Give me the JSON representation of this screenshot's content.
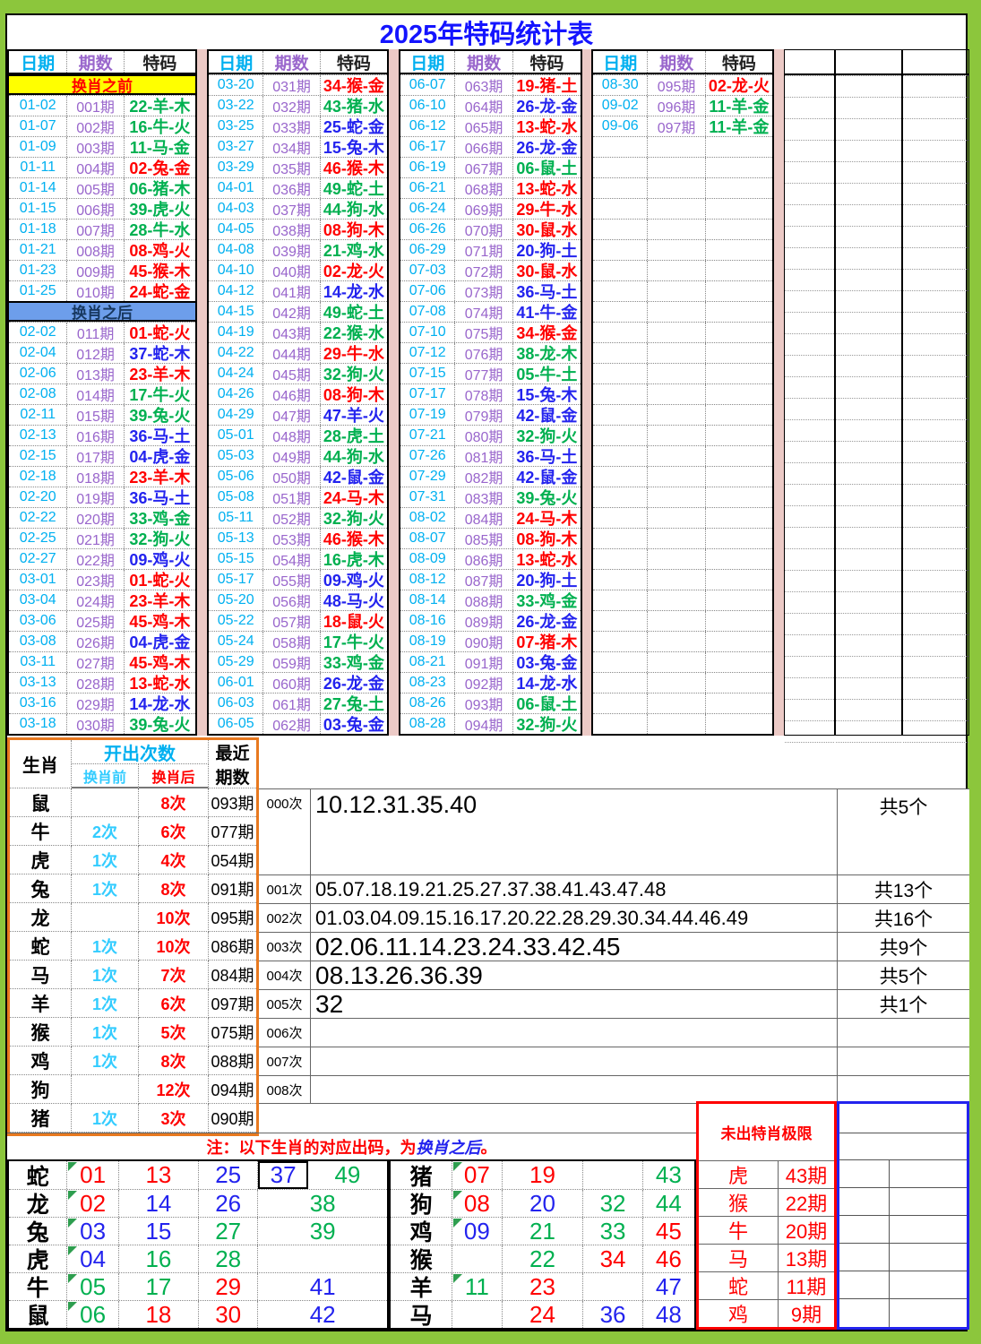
{
  "title": "2025年特码统计表",
  "colors": {
    "frame": "#8CC63C",
    "pink": "#ECCAC6",
    "cyan": "#00B0F0",
    "purple": "#9966CC",
    "red": "#FF0000",
    "green": "#00B050",
    "blue": "#2323EE",
    "yellow_bg": "#FFFF00",
    "blue_bg": "#6D9EEB",
    "orange": "#E8791F",
    "title": "#1414FF"
  },
  "main_table": {
    "headers": {
      "date": "日期",
      "period": "期数",
      "code": "特码"
    },
    "sections": {
      "before": "换肖之前",
      "after": "换肖之后"
    },
    "groups": [
      {
        "rows": [
          [
            "01-02",
            "001期",
            "22-羊-木",
            "g"
          ],
          [
            "01-07",
            "002期",
            "16-牛-火",
            "g"
          ],
          [
            "01-09",
            "003期",
            "11-马-金",
            "g"
          ],
          [
            "01-11",
            "004期",
            "02-兔-金",
            "r"
          ],
          [
            "01-14",
            "005期",
            "06-猪-木",
            "g"
          ],
          [
            "01-15",
            "006期",
            "39-虎-火",
            "g"
          ],
          [
            "01-18",
            "007期",
            "28-牛-水",
            "g"
          ],
          [
            "01-21",
            "008期",
            "08-鸡-火",
            "r"
          ],
          [
            "01-23",
            "009期",
            "45-猴-木",
            "r"
          ],
          [
            "01-25",
            "010期",
            "24-蛇-金",
            "r"
          ],
          [
            "02-02",
            "011期",
            "01-蛇-火",
            "r"
          ],
          [
            "02-04",
            "012期",
            "37-蛇-木",
            "b"
          ],
          [
            "02-06",
            "013期",
            "23-羊-木",
            "r"
          ],
          [
            "02-08",
            "014期",
            "17-牛-火",
            "g"
          ],
          [
            "02-11",
            "015期",
            "39-兔-火",
            "g"
          ],
          [
            "02-13",
            "016期",
            "36-马-土",
            "b"
          ],
          [
            "02-15",
            "017期",
            "04-虎-金",
            "b"
          ],
          [
            "02-18",
            "018期",
            "23-羊-木",
            "r"
          ],
          [
            "02-20",
            "019期",
            "36-马-土",
            "b"
          ],
          [
            "02-22",
            "020期",
            "33-鸡-金",
            "g"
          ],
          [
            "02-25",
            "021期",
            "32-狗-火",
            "g"
          ],
          [
            "02-27",
            "022期",
            "09-鸡-火",
            "b"
          ],
          [
            "03-01",
            "023期",
            "01-蛇-火",
            "r"
          ],
          [
            "03-04",
            "024期",
            "23-羊-木",
            "r"
          ],
          [
            "03-06",
            "025期",
            "45-鸡-木",
            "r"
          ],
          [
            "03-08",
            "026期",
            "04-虎-金",
            "b"
          ],
          [
            "03-11",
            "027期",
            "45-鸡-木",
            "r"
          ],
          [
            "03-13",
            "028期",
            "13-蛇-水",
            "r"
          ],
          [
            "03-16",
            "029期",
            "14-龙-水",
            "b"
          ],
          [
            "03-18",
            "030期",
            "39-兔-火",
            "g"
          ]
        ]
      },
      {
        "rows": [
          [
            "03-20",
            "031期",
            "34-猴-金",
            "r"
          ],
          [
            "03-22",
            "032期",
            "43-猪-水",
            "g"
          ],
          [
            "03-25",
            "033期",
            "25-蛇-金",
            "b"
          ],
          [
            "03-27",
            "034期",
            "15-兔-木",
            "b"
          ],
          [
            "03-29",
            "035期",
            "46-猴-木",
            "r"
          ],
          [
            "04-01",
            "036期",
            "49-蛇-土",
            "g"
          ],
          [
            "04-03",
            "037期",
            "44-狗-水",
            "g"
          ],
          [
            "04-05",
            "038期",
            "08-狗-木",
            "r"
          ],
          [
            "04-08",
            "039期",
            "21-鸡-水",
            "g"
          ],
          [
            "04-10",
            "040期",
            "02-龙-火",
            "r"
          ],
          [
            "04-12",
            "041期",
            "14-龙-水",
            "b"
          ],
          [
            "04-15",
            "042期",
            "49-蛇-土",
            "g"
          ],
          [
            "04-19",
            "043期",
            "22-猴-水",
            "g"
          ],
          [
            "04-22",
            "044期",
            "29-牛-水",
            "r"
          ],
          [
            "04-24",
            "045期",
            "32-狗-火",
            "g"
          ],
          [
            "04-26",
            "046期",
            "08-狗-木",
            "r"
          ],
          [
            "04-29",
            "047期",
            "47-羊-火",
            "b"
          ],
          [
            "05-01",
            "048期",
            "28-虎-土",
            "g"
          ],
          [
            "05-03",
            "049期",
            "44-狗-水",
            "g"
          ],
          [
            "05-06",
            "050期",
            "42-鼠-金",
            "b"
          ],
          [
            "05-08",
            "051期",
            "24-马-木",
            "r"
          ],
          [
            "05-11",
            "052期",
            "32-狗-火",
            "g"
          ],
          [
            "05-13",
            "053期",
            "46-猴-木",
            "r"
          ],
          [
            "05-15",
            "054期",
            "16-虎-木",
            "g"
          ],
          [
            "05-17",
            "055期",
            "09-鸡-火",
            "b"
          ],
          [
            "05-20",
            "056期",
            "48-马-火",
            "b"
          ],
          [
            "05-22",
            "057期",
            "18-鼠-火",
            "r"
          ],
          [
            "05-24",
            "058期",
            "17-牛-火",
            "g"
          ],
          [
            "05-29",
            "059期",
            "33-鸡-金",
            "g"
          ],
          [
            "06-01",
            "060期",
            "26-龙-金",
            "b"
          ],
          [
            "06-03",
            "061期",
            "27-兔-土",
            "g"
          ],
          [
            "06-05",
            "062期",
            "03-兔-金",
            "b"
          ]
        ]
      },
      {
        "rows": [
          [
            "06-07",
            "063期",
            "19-猪-土",
            "r"
          ],
          [
            "06-10",
            "064期",
            "26-龙-金",
            "b"
          ],
          [
            "06-12",
            "065期",
            "13-蛇-水",
            "r"
          ],
          [
            "06-17",
            "066期",
            "26-龙-金",
            "b"
          ],
          [
            "06-19",
            "067期",
            "06-鼠-土",
            "g"
          ],
          [
            "06-21",
            "068期",
            "13-蛇-水",
            "r"
          ],
          [
            "06-24",
            "069期",
            "29-牛-水",
            "r"
          ],
          [
            "06-26",
            "070期",
            "30-鼠-水",
            "r"
          ],
          [
            "06-29",
            "071期",
            "20-狗-土",
            "b"
          ],
          [
            "07-03",
            "072期",
            "30-鼠-水",
            "r"
          ],
          [
            "07-06",
            "073期",
            "36-马-土",
            "b"
          ],
          [
            "07-08",
            "074期",
            "41-牛-金",
            "b"
          ],
          [
            "07-10",
            "075期",
            "34-猴-金",
            "r"
          ],
          [
            "07-12",
            "076期",
            "38-龙-木",
            "g"
          ],
          [
            "07-15",
            "077期",
            "05-牛-土",
            "g"
          ],
          [
            "07-17",
            "078期",
            "15-兔-木",
            "b"
          ],
          [
            "07-19",
            "079期",
            "42-鼠-金",
            "b"
          ],
          [
            "07-21",
            "080期",
            "32-狗-火",
            "g"
          ],
          [
            "07-26",
            "081期",
            "36-马-土",
            "b"
          ],
          [
            "07-29",
            "082期",
            "42-鼠-金",
            "b"
          ],
          [
            "07-31",
            "083期",
            "39-兔-火",
            "g"
          ],
          [
            "08-02",
            "084期",
            "24-马-木",
            "r"
          ],
          [
            "08-07",
            "085期",
            "08-狗-木",
            "r"
          ],
          [
            "08-09",
            "086期",
            "13-蛇-水",
            "r"
          ],
          [
            "08-12",
            "087期",
            "20-狗-土",
            "b"
          ],
          [
            "08-14",
            "088期",
            "33-鸡-金",
            "g"
          ],
          [
            "08-16",
            "089期",
            "26-龙-金",
            "b"
          ],
          [
            "08-19",
            "090期",
            "07-猪-木",
            "r"
          ],
          [
            "08-21",
            "091期",
            "03-兔-金",
            "b"
          ],
          [
            "08-23",
            "092期",
            "14-龙-水",
            "b"
          ],
          [
            "08-26",
            "093期",
            "06-鼠-土",
            "g"
          ],
          [
            "08-28",
            "094期",
            "32-狗-火",
            "g"
          ]
        ]
      },
      {
        "rows": [
          [
            "08-30",
            "095期",
            "02-龙-火",
            "r"
          ],
          [
            "09-02",
            "096期",
            "11-羊-金",
            "g"
          ],
          [
            "09-06",
            "097期",
            "11-羊-金",
            "g"
          ]
        ]
      }
    ]
  },
  "stats": {
    "zodiac_header": "生肖",
    "freq_header": "开出次数",
    "before_header": "换肖前",
    "after_header": "换肖后",
    "recent_header_1": "最近",
    "recent_header_2": "期数",
    "rows": [
      {
        "z": "鼠",
        "before": "",
        "after": "8次",
        "recent": "093期"
      },
      {
        "z": "牛",
        "before": "2次",
        "after": "6次",
        "recent": "077期"
      },
      {
        "z": "虎",
        "before": "1次",
        "after": "4次",
        "recent": "054期"
      },
      {
        "z": "兔",
        "before": "1次",
        "after": "8次",
        "recent": "091期"
      },
      {
        "z": "龙",
        "before": "",
        "after": "10次",
        "recent": "095期"
      },
      {
        "z": "蛇",
        "before": "1次",
        "after": "10次",
        "recent": "086期"
      },
      {
        "z": "马",
        "before": "1次",
        "after": "7次",
        "recent": "084期"
      },
      {
        "z": "羊",
        "before": "1次",
        "after": "6次",
        "recent": "097期"
      },
      {
        "z": "猴",
        "before": "1次",
        "after": "5次",
        "recent": "075期"
      },
      {
        "z": "鸡",
        "before": "1次",
        "after": "8次",
        "recent": "088期"
      },
      {
        "z": "狗",
        "before": "",
        "after": "12次",
        "recent": "094期"
      },
      {
        "z": "猪",
        "before": "1次",
        "after": "3次",
        "recent": "090期"
      }
    ]
  },
  "frequency": {
    "rows": [
      {
        "label": "000次",
        "numbers": "10.12.31.35.40",
        "count": "共5个"
      },
      {
        "label": "001次",
        "numbers": "05.07.18.19.21.25.27.37.38.41.43.47.48",
        "count": "共13个"
      },
      {
        "label": "002次",
        "numbers": "01.03.04.09.15.16.17.20.22.28.29.30.34.44.46.49",
        "count": "共16个"
      },
      {
        "label": "003次",
        "numbers": "02.06.11.14.23.24.33.42.45",
        "count": "共9个"
      },
      {
        "label": "004次",
        "numbers": "08.13.26.36.39",
        "count": "共5个"
      },
      {
        "label": "005次",
        "numbers": "32",
        "count": "共1个"
      },
      {
        "label": "006次",
        "numbers": "",
        "count": ""
      },
      {
        "label": "007次",
        "numbers": "",
        "count": ""
      },
      {
        "label": "008次",
        "numbers": "",
        "count": ""
      }
    ]
  },
  "note": {
    "prefix": "注：以下生肖的对应出码，为",
    "highlight": "换肖之后",
    "suffix": "。"
  },
  "limit_box": {
    "title": "未出特肖极限",
    "rows": [
      {
        "z": "虎",
        "p": "43期"
      },
      {
        "z": "猴",
        "p": "22期"
      },
      {
        "z": "牛",
        "p": "20期"
      },
      {
        "z": "马",
        "p": "13期"
      },
      {
        "z": "蛇",
        "p": "11期"
      },
      {
        "z": "鸡",
        "p": "9期"
      }
    ]
  },
  "bottom_left": {
    "rows": [
      {
        "z": "蛇",
        "cells": [
          [
            "01",
            "r"
          ],
          [
            "13",
            "r"
          ],
          [
            "25",
            "b"
          ],
          [
            "37",
            "b"
          ],
          [
            "49",
            "g"
          ]
        ],
        "merged": false
      },
      {
        "z": "龙",
        "cells": [
          [
            "02",
            "r"
          ],
          [
            "14",
            "b"
          ],
          [
            "26",
            "b"
          ],
          [
            "38",
            "g"
          ]
        ],
        "merged": true
      },
      {
        "z": "兔",
        "cells": [
          [
            "03",
            "b"
          ],
          [
            "15",
            "b"
          ],
          [
            "27",
            "g"
          ],
          [
            "39",
            "g"
          ]
        ],
        "merged": true
      },
      {
        "z": "虎",
        "cells": [
          [
            "04",
            "b"
          ],
          [
            "16",
            "g"
          ],
          [
            "28",
            "g"
          ],
          [
            "",
            ""
          ]
        ],
        "merged": true
      },
      {
        "z": "牛",
        "cells": [
          [
            "05",
            "g"
          ],
          [
            "17",
            "g"
          ],
          [
            "29",
            "r"
          ],
          [
            "41",
            "b"
          ]
        ],
        "merged": true
      },
      {
        "z": "鼠",
        "cells": [
          [
            "06",
            "g"
          ],
          [
            "18",
            "r"
          ],
          [
            "30",
            "r"
          ],
          [
            "42",
            "b"
          ]
        ],
        "merged": true
      }
    ]
  },
  "bottom_right": {
    "rows": [
      {
        "z": "猪",
        "cells": [
          [
            "07",
            "r"
          ],
          [
            "19",
            "r"
          ],
          [
            "",
            ""
          ],
          [
            "43",
            "g"
          ]
        ]
      },
      {
        "z": "狗",
        "cells": [
          [
            "08",
            "r"
          ],
          [
            "20",
            "b"
          ],
          [
            "32",
            "g"
          ],
          [
            "44",
            "g"
          ]
        ]
      },
      {
        "z": "鸡",
        "cells": [
          [
            "09",
            "b"
          ],
          [
            "21",
            "g"
          ],
          [
            "33",
            "g"
          ],
          [
            "45",
            "r"
          ]
        ]
      },
      {
        "z": "猴",
        "cells": [
          [
            "",
            ""
          ],
          [
            "22",
            "g"
          ],
          [
            "34",
            "r"
          ],
          [
            "46",
            "r"
          ]
        ]
      },
      {
        "z": "羊",
        "cells": [
          [
            "11",
            "g"
          ],
          [
            "23",
            "r"
          ],
          [
            "",
            ""
          ],
          [
            "47",
            "b"
          ]
        ]
      },
      {
        "z": "马",
        "cells": [
          [
            "",
            ""
          ],
          [
            "24",
            "r"
          ],
          [
            "36",
            "b"
          ],
          [
            "48",
            "b"
          ]
        ]
      }
    ]
  }
}
